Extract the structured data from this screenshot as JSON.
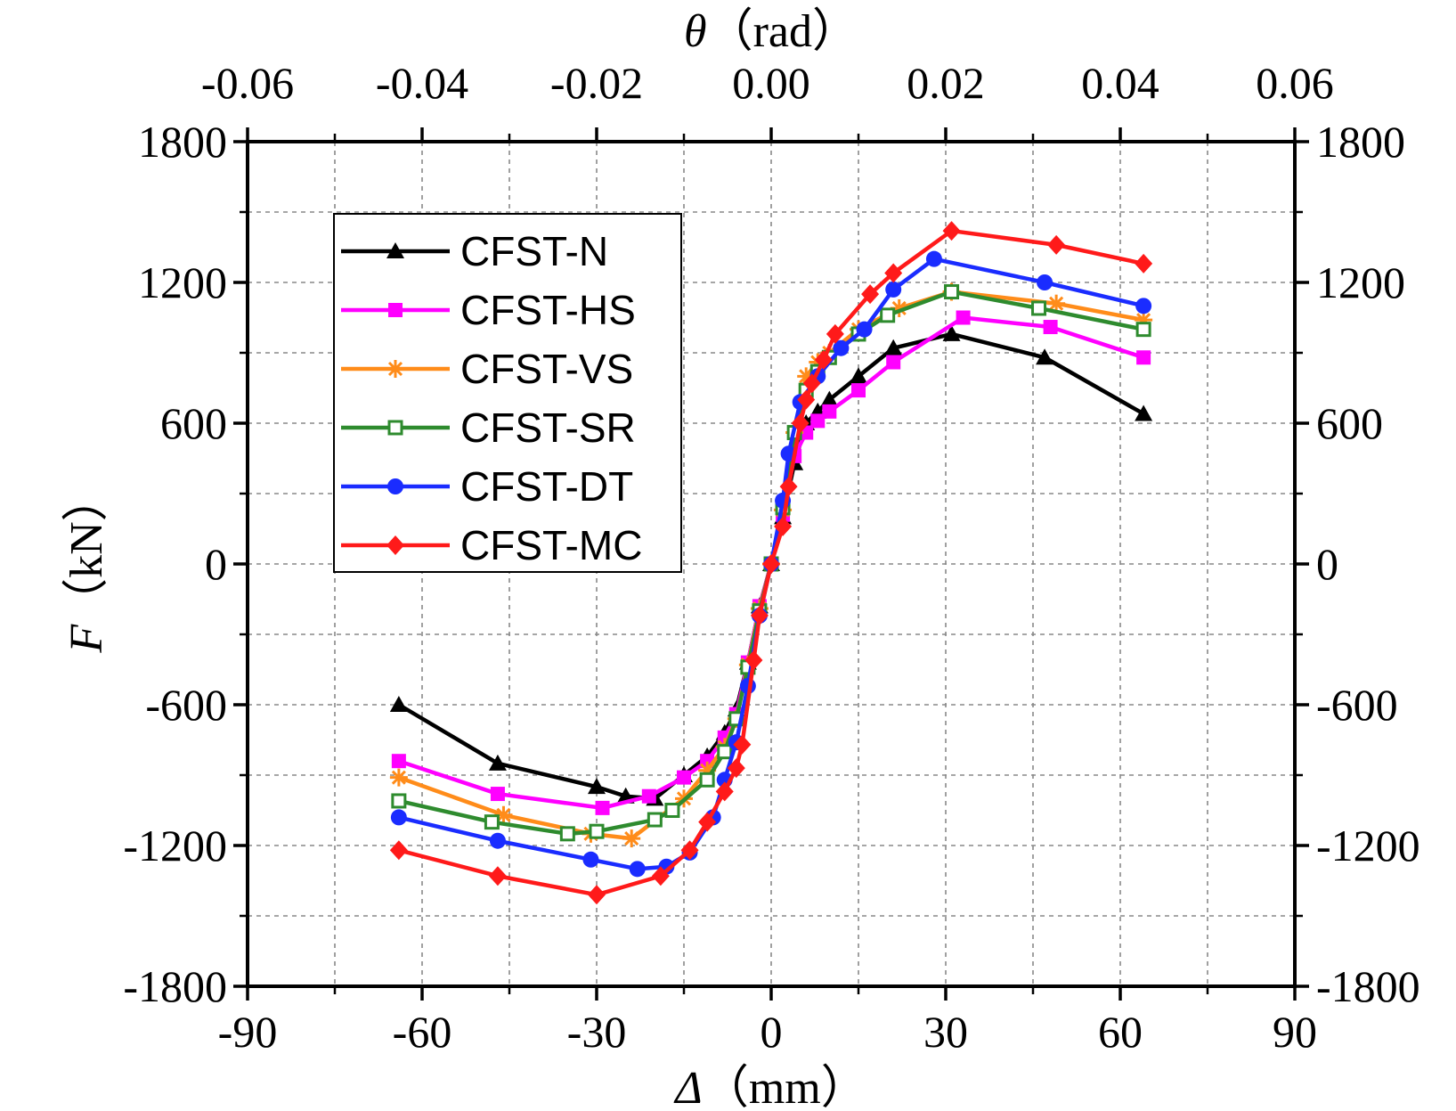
{
  "chart_data": {
    "type": "line",
    "xlabel": {
      "symbol": "Δ",
      "unit": "（mm）"
    },
    "ylabel": {
      "symbol": "F",
      "unit": "（kN）"
    },
    "x2label": {
      "symbol": "θ",
      "unit": "（rad）"
    },
    "xlim": [
      -90,
      90
    ],
    "ylim": [
      -1800,
      1800
    ],
    "x2lim": [
      -0.06,
      0.06
    ],
    "x_ticks": [
      "-90",
      "-60",
      "-30",
      "0",
      "30",
      "60",
      "90"
    ],
    "y_ticks": [
      "1800",
      "1200",
      "600",
      "0",
      "-600",
      "-1200",
      "-1800"
    ],
    "y2_ticks": [
      "1800",
      "1200",
      "600",
      "0",
      "-600",
      "-1200",
      "-1800"
    ],
    "x2_ticks": [
      "-0.06",
      "-0.04",
      "-0.02",
      "0.00",
      "0.02",
      "0.04",
      "0.06"
    ],
    "grid": true,
    "legend_position": "top-left",
    "series": [
      {
        "name": "CFST-N",
        "color": "#000000",
        "marker": "triangle",
        "points": [
          [
            -64,
            -600
          ],
          [
            -47,
            -850
          ],
          [
            -30,
            -950
          ],
          [
            -25,
            -990
          ],
          [
            -20,
            -1000
          ],
          [
            -15,
            -900
          ],
          [
            -11,
            -820
          ],
          [
            -8,
            -720
          ],
          [
            -6,
            -620
          ],
          [
            -4,
            -420
          ],
          [
            -2,
            -180
          ],
          [
            0,
            0
          ],
          [
            2,
            200
          ],
          [
            4,
            430
          ],
          [
            6,
            600
          ],
          [
            8,
            650
          ],
          [
            10,
            700
          ],
          [
            15,
            800
          ],
          [
            21,
            920
          ],
          [
            31,
            980
          ],
          [
            47,
            880
          ],
          [
            64,
            640
          ]
        ]
      },
      {
        "name": "CFST-HS",
        "color": "#ff00ff",
        "marker": "square",
        "points": [
          [
            -64,
            -840
          ],
          [
            -47,
            -980
          ],
          [
            -29,
            -1040
          ],
          [
            -21,
            -990
          ],
          [
            -15,
            -910
          ],
          [
            -11,
            -840
          ],
          [
            -8,
            -740
          ],
          [
            -6,
            -640
          ],
          [
            -4,
            -420
          ],
          [
            -2,
            -180
          ],
          [
            0,
            0
          ],
          [
            2,
            210
          ],
          [
            4,
            460
          ],
          [
            6,
            560
          ],
          [
            8,
            610
          ],
          [
            10,
            650
          ],
          [
            15,
            740
          ],
          [
            21,
            860
          ],
          [
            33,
            1050
          ],
          [
            48,
            1010
          ],
          [
            64,
            880
          ]
        ]
      },
      {
        "name": "CFST-VS",
        "color": "#ff8c1a",
        "marker": "asterisk",
        "points": [
          [
            -64,
            -910
          ],
          [
            -46,
            -1070
          ],
          [
            -31,
            -1150
          ],
          [
            -24,
            -1170
          ],
          [
            -15,
            -1000
          ],
          [
            -11,
            -880
          ],
          [
            -8,
            -780
          ],
          [
            -6,
            -660
          ],
          [
            -4,
            -430
          ],
          [
            -2,
            -190
          ],
          [
            0,
            0
          ],
          [
            2,
            230
          ],
          [
            4,
            560
          ],
          [
            6,
            800
          ],
          [
            8,
            860
          ],
          [
            10,
            900
          ],
          [
            15,
            1000
          ],
          [
            22,
            1090
          ],
          [
            31,
            1160
          ],
          [
            49,
            1110
          ],
          [
            64,
            1040
          ]
        ]
      },
      {
        "name": "CFST-SR",
        "color": "#2e8b2e",
        "marker": "open-square",
        "points": [
          [
            -64,
            -1010
          ],
          [
            -48,
            -1100
          ],
          [
            -35,
            -1150
          ],
          [
            -30,
            -1140
          ],
          [
            -20,
            -1090
          ],
          [
            -17,
            -1050
          ],
          [
            -11,
            -920
          ],
          [
            -8,
            -800
          ],
          [
            -6,
            -660
          ],
          [
            -4,
            -440
          ],
          [
            -2,
            -200
          ],
          [
            0,
            0
          ],
          [
            2,
            240
          ],
          [
            4,
            560
          ],
          [
            6,
            740
          ],
          [
            8,
            820
          ],
          [
            10,
            880
          ],
          [
            15,
            980
          ],
          [
            20,
            1060
          ],
          [
            31,
            1160
          ],
          [
            46,
            1090
          ],
          [
            64,
            1000
          ]
        ]
      },
      {
        "name": "CFST-DT",
        "color": "#1a2cff",
        "marker": "circle",
        "points": [
          [
            -64,
            -1080
          ],
          [
            -47,
            -1180
          ],
          [
            -31,
            -1260
          ],
          [
            -23,
            -1300
          ],
          [
            -18,
            -1290
          ],
          [
            -14,
            -1230
          ],
          [
            -10,
            -1080
          ],
          [
            -8,
            -920
          ],
          [
            -6,
            -760
          ],
          [
            -4,
            -520
          ],
          [
            -2,
            -220
          ],
          [
            0,
            0
          ],
          [
            2,
            270
          ],
          [
            3,
            470
          ],
          [
            5,
            690
          ],
          [
            8,
            800
          ],
          [
            12,
            920
          ],
          [
            16,
            1000
          ],
          [
            21,
            1170
          ],
          [
            28,
            1300
          ],
          [
            47,
            1200
          ],
          [
            64,
            1100
          ]
        ]
      },
      {
        "name": "CFST-MC",
        "color": "#ff1a1a",
        "marker": "diamond",
        "points": [
          [
            -64,
            -1220
          ],
          [
            -47,
            -1330
          ],
          [
            -30,
            -1410
          ],
          [
            -19,
            -1330
          ],
          [
            -14,
            -1220
          ],
          [
            -11,
            -1100
          ],
          [
            -8,
            -970
          ],
          [
            -6,
            -870
          ],
          [
            -5,
            -770
          ],
          [
            -3,
            -410
          ],
          [
            -2,
            -220
          ],
          [
            0,
            0
          ],
          [
            2,
            160
          ],
          [
            3,
            330
          ],
          [
            5,
            600
          ],
          [
            6,
            700
          ],
          [
            7,
            770
          ],
          [
            9,
            870
          ],
          [
            11,
            980
          ],
          [
            17,
            1150
          ],
          [
            21,
            1240
          ],
          [
            31,
            1420
          ],
          [
            49,
            1360
          ],
          [
            64,
            1280
          ]
        ]
      }
    ]
  }
}
